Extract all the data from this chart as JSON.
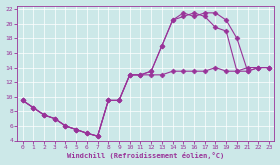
{
  "bg_color": "#cce8e8",
  "line_color": "#993399",
  "xlim": [
    -0.5,
    23.5
  ],
  "ylim": [
    4,
    22.5
  ],
  "xticks": [
    0,
    1,
    2,
    3,
    4,
    5,
    6,
    7,
    8,
    9,
    10,
    11,
    12,
    13,
    14,
    15,
    16,
    17,
    18,
    19,
    20,
    21,
    22,
    23
  ],
  "yticks": [
    4,
    6,
    8,
    10,
    12,
    14,
    16,
    18,
    20,
    22
  ],
  "xlabel": "Windchill (Refroidissement éolien,°C)",
  "series1_x": [
    0,
    1,
    2,
    3,
    4,
    5,
    6,
    7,
    8,
    9,
    10,
    11,
    12,
    13,
    14,
    15,
    16,
    17,
    18,
    19,
    20,
    21,
    22,
    23
  ],
  "series1_y": [
    9.5,
    8.5,
    7.5,
    7.0,
    6.0,
    5.5,
    5.0,
    4.6,
    9.5,
    9.5,
    13.0,
    13.0,
    13.0,
    13.0,
    13.5,
    13.5,
    13.5,
    13.5,
    14.0,
    13.5,
    13.5,
    14.0,
    14.0,
    14.0
  ],
  "series2_x": [
    0,
    1,
    2,
    3,
    4,
    5,
    6,
    7,
    8,
    9,
    10,
    11,
    12,
    13,
    14,
    15,
    16,
    17,
    18,
    19,
    20,
    21,
    22,
    23
  ],
  "series2_y": [
    9.5,
    8.5,
    7.5,
    7.0,
    6.0,
    5.5,
    5.0,
    4.6,
    9.5,
    9.5,
    13.0,
    13.0,
    13.5,
    17.0,
    20.5,
    21.5,
    21.0,
    21.5,
    21.5,
    20.5,
    18.0,
    13.5,
    14.0,
    14.0
  ],
  "series3_x": [
    0,
    1,
    2,
    3,
    4,
    5,
    6,
    7,
    8,
    9,
    10,
    11,
    12,
    13,
    14,
    15,
    16,
    17,
    18,
    19,
    20,
    21,
    22,
    23
  ],
  "series3_y": [
    9.5,
    8.5,
    7.5,
    7.0,
    6.0,
    5.5,
    5.0,
    4.6,
    9.5,
    9.5,
    13.0,
    13.0,
    13.5,
    17.0,
    20.5,
    21.0,
    21.5,
    21.0,
    19.5,
    19.0,
    13.5,
    13.5,
    14.0,
    14.0
  ],
  "marker": "D",
  "markersize": 2.5,
  "linewidth": 0.8
}
